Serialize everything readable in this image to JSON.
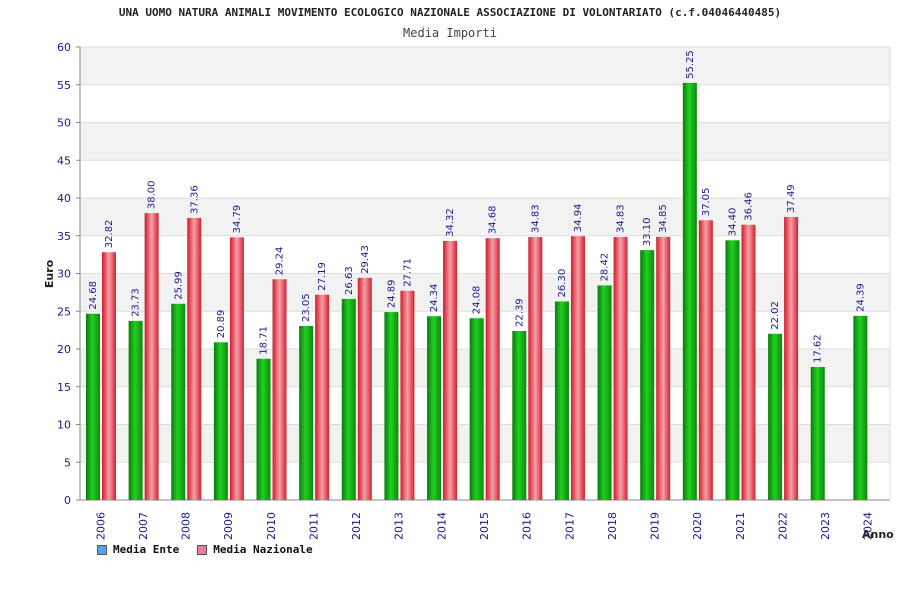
{
  "chart_data": {
    "type": "bar",
    "title": "UNA UOMO NATURA ANIMALI MOVIMENTO ECOLOGICO NAZIONALE ASSOCIAZIONE DI VOLONTARIATO (c.f.04046440485)",
    "subtitle": "Media Importi",
    "xlabel": "Anno",
    "ylabel": "Euro",
    "ylim": [
      0,
      60
    ],
    "yticks": [
      0,
      5,
      10,
      15,
      20,
      25,
      30,
      35,
      40,
      45,
      50,
      55,
      60
    ],
    "grid": true,
    "legend_position": "bottom-left",
    "categories": [
      "2006",
      "2007",
      "2008",
      "2009",
      "2010",
      "2011",
      "2012",
      "2013",
      "2014",
      "2015",
      "2016",
      "2017",
      "2018",
      "2019",
      "2020",
      "2021",
      "2022",
      "2023",
      "2024"
    ],
    "series": [
      {
        "name": "Media Ente",
        "color": "#1db51d",
        "legend_color": "#5aa0e6",
        "values": [
          24.68,
          23.73,
          25.99,
          20.89,
          18.71,
          23.05,
          26.63,
          24.89,
          24.34,
          24.08,
          22.39,
          26.3,
          28.42,
          33.1,
          55.25,
          34.4,
          22.02,
          17.62,
          24.39
        ],
        "labels": [
          "24.68",
          "23.73",
          "25.99",
          "20.89",
          "18.71",
          "23.05",
          "26.63",
          "24.89",
          "24.34",
          "24.08",
          "22.39",
          "26.30",
          "28.42",
          "33.10",
          "55.25",
          "34.40",
          "22.02",
          "17.62",
          "24.39"
        ]
      },
      {
        "name": "Media Nazionale",
        "color": "#e8434f",
        "legend_color": "#e87aa8",
        "values": [
          32.82,
          38.0,
          37.36,
          34.79,
          29.24,
          27.19,
          29.43,
          27.71,
          34.32,
          34.68,
          34.83,
          34.94,
          34.83,
          34.85,
          37.05,
          36.46,
          37.49,
          null,
          null
        ],
        "labels": [
          "32.82",
          "38.00",
          "37.36",
          "34.79",
          "29.24",
          "27.19",
          "29.43",
          "27.71",
          "34.32",
          "34.68",
          "34.83",
          "34.94",
          "34.83",
          "34.85",
          "37.05",
          "36.46",
          "37.49",
          null,
          null
        ]
      }
    ]
  }
}
